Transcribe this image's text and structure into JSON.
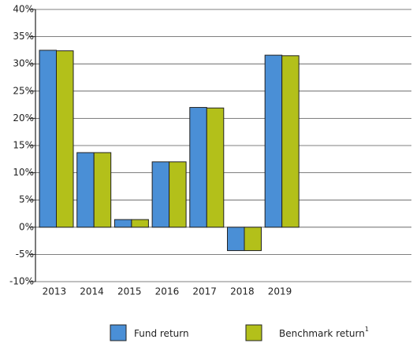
{
  "chart_data": {
    "type": "bar",
    "categories": [
      "2013",
      "2014",
      "2015",
      "2016",
      "2017",
      "2018",
      "2019",
      null,
      null,
      null
    ],
    "series": [
      {
        "name": "Fund return",
        "color": "#4a8fd6",
        "values": [
          32.5,
          13.7,
          1.4,
          12.0,
          22.0,
          -4.3,
          31.6,
          null,
          null,
          null
        ]
      },
      {
        "name": "Benchmark return",
        "superscript": "1",
        "color": "#b3c01a",
        "values": [
          32.4,
          13.7,
          1.4,
          12.0,
          21.9,
          -4.3,
          31.5,
          null,
          null,
          null
        ]
      }
    ],
    "ylim": [
      -10,
      40
    ],
    "yticks": [
      {
        "value": -10,
        "label": "-10%"
      },
      {
        "value": -5,
        "label": "-5%"
      },
      {
        "value": 0,
        "label": "0%"
      },
      {
        "value": 5,
        "label": "5%"
      },
      {
        "value": 10,
        "label": "10%"
      },
      {
        "value": 15,
        "label": "15%"
      },
      {
        "value": 20,
        "label": "20%"
      },
      {
        "value": 25,
        "label": "25%"
      },
      {
        "value": 30,
        "label": "30%"
      },
      {
        "value": 35,
        "label": "35%"
      },
      {
        "value": 40,
        "label": "40%"
      }
    ],
    "grid": true,
    "legend": "bottom"
  }
}
